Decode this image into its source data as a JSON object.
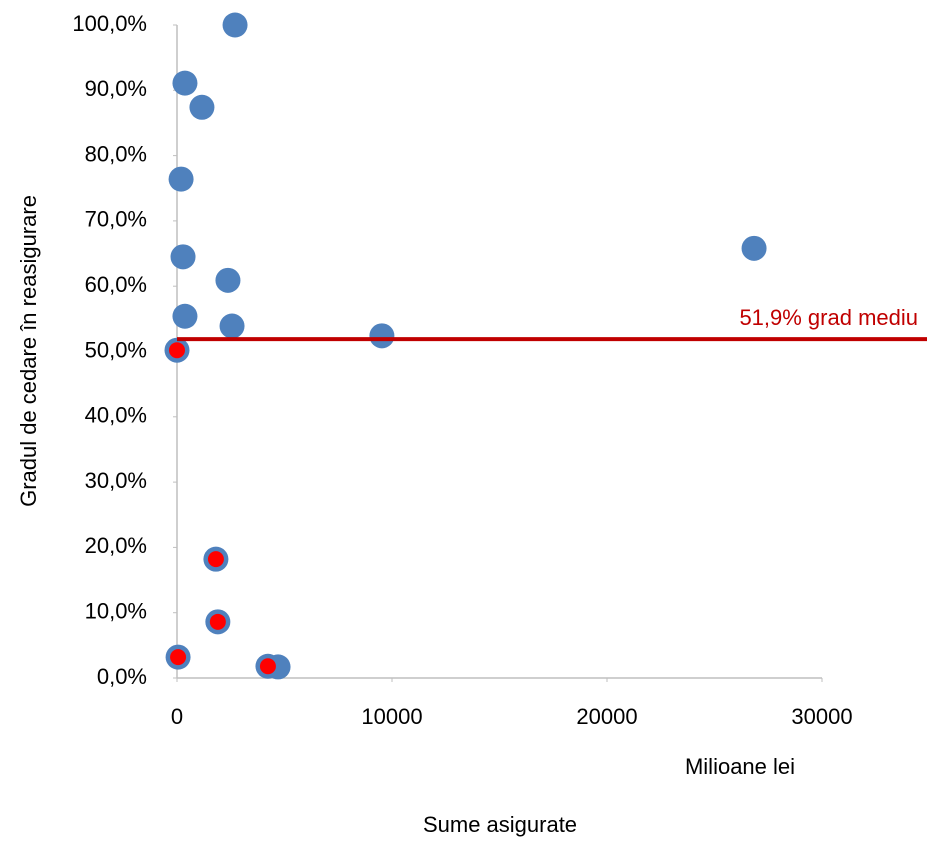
{
  "chart_data": {
    "type": "scatter",
    "y_label": "Gradul de cedare în reasigurare",
    "x_unit_label": "Milioane lei",
    "x_label": "Sume asigurate",
    "xlim": [
      0,
      30000
    ],
    "xticks": [
      0,
      10000,
      20000,
      30000
    ],
    "ylim": [
      0,
      100
    ],
    "yticks": [
      {
        "value": 0,
        "label": "0,0%"
      },
      {
        "value": 10,
        "label": "10,0%"
      },
      {
        "value": 20,
        "label": "20,0%"
      },
      {
        "value": 30,
        "label": "30,0%"
      },
      {
        "value": 40,
        "label": "40,0%"
      },
      {
        "value": 50,
        "label": "50,0%"
      },
      {
        "value": 60,
        "label": "60,0%"
      },
      {
        "value": 70,
        "label": "70,0%"
      },
      {
        "value": 80,
        "label": "80,0%"
      },
      {
        "value": 90,
        "label": "90,0%"
      },
      {
        "value": 100,
        "label": "100,0%"
      }
    ],
    "grid": false,
    "mean_line": {
      "value": 51.9,
      "label": "51,9% grad mediu",
      "color": "#c00000"
    },
    "series": [
      {
        "color": "#4f81bd",
        "x": [
          2700,
          370,
          1160,
          190,
          280,
          2370,
          370,
          2560,
          9530,
          26840,
          0,
          1810,
          1900,
          50,
          4230,
          4700
        ],
        "values": [
          100,
          91.1,
          87.4,
          76.4,
          64.5,
          60.9,
          55.4,
          53.9,
          52.4,
          65.8,
          50.2,
          18.2,
          8.6,
          3.2,
          1.8,
          1.7
        ]
      },
      {
        "color": "#ff0000",
        "x": [
          0,
          1810,
          1900,
          50,
          4230
        ],
        "values": [
          50.2,
          18.2,
          8.6,
          3.2,
          1.8
        ]
      }
    ]
  }
}
